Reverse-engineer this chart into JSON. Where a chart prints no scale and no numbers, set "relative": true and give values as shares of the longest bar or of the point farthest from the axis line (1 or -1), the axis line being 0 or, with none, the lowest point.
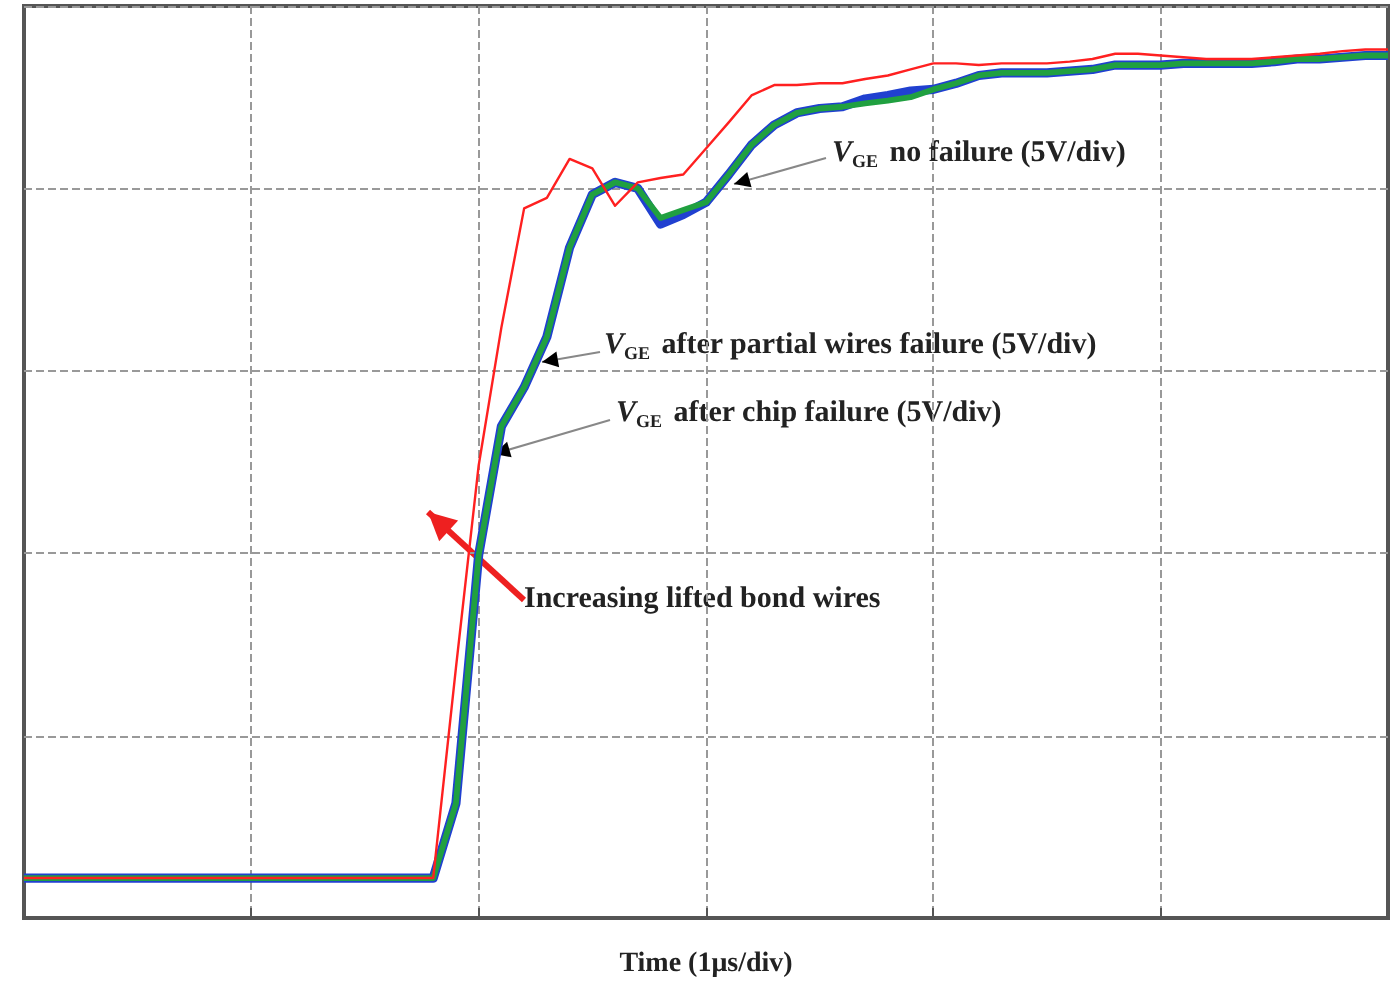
{
  "chart_data": {
    "type": "line",
    "relative": true,
    "xlabel": "Time (1μs/div)",
    "grid": true,
    "categories": [
      null,
      null,
      null,
      null,
      null,
      null,
      null,
      null,
      null,
      null,
      null,
      null,
      null,
      null,
      null,
      null,
      null,
      null,
      null,
      null,
      null,
      null,
      null,
      null,
      null,
      null,
      null,
      null,
      null,
      null,
      null,
      null,
      null,
      null,
      null,
      null,
      null,
      null,
      null,
      null,
      null,
      null,
      null,
      null,
      null,
      null,
      null,
      null,
      null,
      null,
      null,
      null,
      null,
      null,
      null,
      null,
      null,
      null,
      null,
      null,
      null
    ],
    "series": [
      {
        "color": "#2040d0",
        "values": [
          0.046,
          0.046,
          0.046,
          0.046,
          0.046,
          0.046,
          0.046,
          0.046,
          0.046,
          0.046,
          0.046,
          0.046,
          0.046,
          0.046,
          0.046,
          0.046,
          0.046,
          0.046,
          0.046,
          0.132,
          0.418,
          0.566,
          0.611,
          0.669,
          0.772,
          0.833,
          0.847,
          0.84,
          0.799,
          0.81,
          0.824,
          0.856,
          0.89,
          0.913,
          0.927,
          0.932,
          0.934,
          0.943,
          0.947,
          0.952,
          0.954,
          0.961,
          0.97,
          0.973,
          0.973,
          0.973,
          0.975,
          0.977,
          0.982,
          0.982,
          0.982,
          0.984,
          0.984,
          0.984,
          0.984,
          0.986,
          0.989,
          0.989,
          0.991,
          0.993,
          0.993
        ]
      },
      {
        "color": "#20a040",
        "values": [
          0.046,
          0.046,
          0.046,
          0.046,
          0.046,
          0.046,
          0.046,
          0.046,
          0.046,
          0.046,
          0.046,
          0.046,
          0.046,
          0.046,
          0.046,
          0.046,
          0.046,
          0.046,
          0.046,
          0.132,
          0.418,
          0.566,
          0.611,
          0.669,
          0.772,
          0.833,
          0.847,
          0.84,
          0.806,
          0.815,
          0.824,
          0.856,
          0.89,
          0.913,
          0.927,
          0.932,
          0.934,
          0.938,
          0.941,
          0.945,
          0.954,
          0.961,
          0.97,
          0.973,
          0.973,
          0.973,
          0.975,
          0.977,
          0.982,
          0.982,
          0.982,
          0.984,
          0.984,
          0.984,
          0.984,
          0.986,
          0.989,
          0.989,
          0.991,
          0.993,
          0.993
        ]
      },
      {
        "color": "#ff2020",
        "values": [
          0.046,
          0.046,
          0.046,
          0.046,
          0.046,
          0.046,
          0.046,
          0.046,
          0.046,
          0.046,
          0.046,
          0.046,
          0.046,
          0.046,
          0.046,
          0.046,
          0.046,
          0.046,
          0.046,
          0.288,
          0.521,
          0.68,
          0.817,
          0.829,
          0.874,
          0.863,
          0.82,
          0.847,
          0.852,
          0.856,
          0.886,
          0.916,
          0.947,
          0.959,
          0.959,
          0.961,
          0.961,
          0.966,
          0.97,
          0.977,
          0.984,
          0.984,
          0.982,
          0.984,
          0.984,
          0.984,
          0.986,
          0.989,
          0.995,
          0.995,
          0.993,
          0.991,
          0.989,
          0.989,
          0.989,
          0.991,
          0.993,
          0.995,
          0.998,
          1,
          1
        ]
      }
    ],
    "annotations": [
      "V$_{GE}$ no failure (5V/div)",
      "V$_{GE}$ after partial wires failure (5V/div)",
      "V$_{GE}$ after chip failure (5V/div)",
      "Increasing lifted bond wires"
    ]
  }
}
